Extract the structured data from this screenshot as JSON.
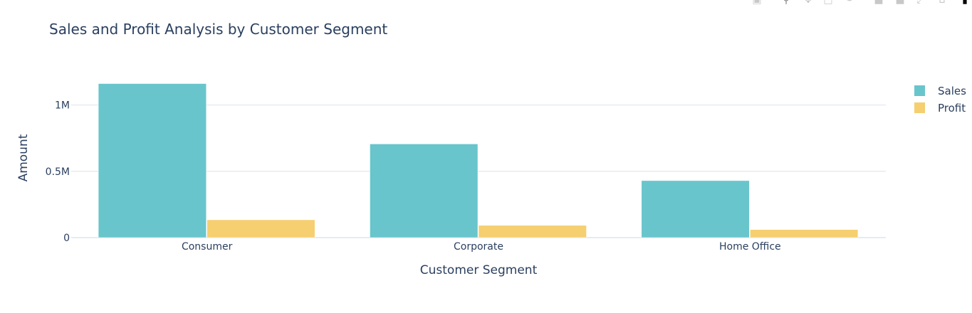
{
  "chart_data": {
    "type": "bar",
    "title": "Sales and Profit Analysis by Customer Segment",
    "xlabel": "Customer Segment",
    "ylabel": "Amount",
    "categories": [
      "Consumer",
      "Corporate",
      "Home Office"
    ],
    "series": [
      {
        "name": "Sales",
        "color": "#68c5cb",
        "values": [
          1161401,
          706146,
          429653
        ]
      },
      {
        "name": "Profit",
        "color": "#f5cf70",
        "values": [
          134119,
          91979,
          60299
        ]
      }
    ],
    "ylim": [
      0,
      1250000
    ],
    "yticks": [
      {
        "value": 0,
        "label": "0"
      },
      {
        "value": 500000,
        "label": "0.5M"
      },
      {
        "value": 1000000,
        "label": "1M"
      }
    ],
    "grid": true,
    "legend_position": "top-right"
  },
  "modebar": {
    "icons": [
      "camera-icon",
      "zoom-icon",
      "pan-icon",
      "box-select-icon",
      "lasso-icon",
      "zoom-in-icon",
      "zoom-out-icon",
      "autoscale-icon",
      "home-icon",
      "plotly-logo-icon"
    ]
  }
}
